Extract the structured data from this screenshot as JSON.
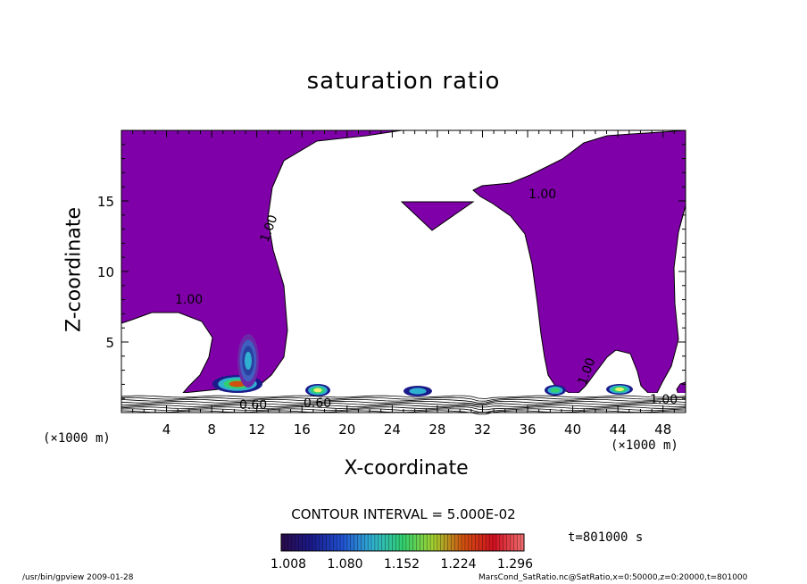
{
  "chart_data": {
    "type": "heatmap",
    "title": "saturation ratio",
    "xlabel": "X-coordinate",
    "ylabel": "Z-coordinate",
    "x_unit": "(×1000 m)",
    "z_unit": "(×1000 m)",
    "xlim": [
      0,
      50
    ],
    "ylim": [
      0,
      20
    ],
    "x_ticks": [
      4,
      8,
      12,
      16,
      20,
      24,
      28,
      32,
      36,
      40,
      44,
      48
    ],
    "y_ticks": [
      5,
      10,
      15
    ],
    "contour_interval_text": "CONTOUR INTERVAL = 5.000E-02",
    "contour_labels": [
      "1.00",
      "1.00",
      "1.00",
      "1.00",
      "1.00",
      "0.60",
      "0.60"
    ],
    "colorbar": {
      "labels": [
        "1.008",
        "1.080",
        "1.152",
        "1.224",
        "1.296"
      ],
      "min": 1.008,
      "max": 1.32,
      "colors": [
        "#2a0a4a",
        "#1a1a8a",
        "#2050d0",
        "#30b0d0",
        "#30d070",
        "#a0d030",
        "#d05010",
        "#d01020",
        "#f07070"
      ]
    },
    "fill_color": "#7f00a8",
    "time_text": "t=801000 s"
  },
  "footer": {
    "left": "/usr/bin/gpview   2009-01-28",
    "right": "MarsCond_SatRatio.nc@SatRatio,x=0:50000,z=0:20000,t=801000"
  }
}
